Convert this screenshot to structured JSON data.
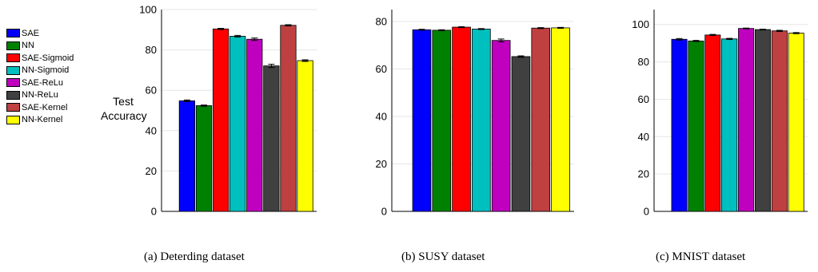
{
  "figure": {
    "ylabel": "Test Accuracy",
    "legend": [
      {
        "name": "SAE",
        "color": "#0000ff"
      },
      {
        "name": "NN",
        "color": "#008000"
      },
      {
        "name": "SAE-Sigmoid",
        "color": "#ff0000"
      },
      {
        "name": "NN-Sigmoid",
        "color": "#00bfbf"
      },
      {
        "name": "SAE-ReLu",
        "color": "#bf00bf"
      },
      {
        "name": "NN-ReLu",
        "color": "#404040"
      },
      {
        "name": "SAE-Kernel",
        "color": "#bf4040"
      },
      {
        "name": "NN-Kernel",
        "color": "#ffff00"
      }
    ]
  },
  "chart_data": [
    {
      "type": "bar",
      "caption": "(a) Deterding dataset",
      "categories": [
        "SAE",
        "NN",
        "SAE-Sigmoid",
        "NN-Sigmoid",
        "SAE-ReLu",
        "NN-ReLu",
        "SAE-Kernel",
        "NN-Kernel"
      ],
      "values": [
        54.8,
        52.4,
        90.4,
        86.8,
        85.3,
        72.1,
        92.2,
        74.7
      ],
      "errors": [
        0.4,
        0.3,
        0.3,
        0.4,
        0.6,
        0.8,
        0.3,
        0.4
      ],
      "ylim": [
        0,
        100
      ],
      "yticks": [
        0,
        20,
        40,
        60,
        80,
        100
      ],
      "grid": true
    },
    {
      "type": "bar",
      "caption": "(b) SUSY dataset",
      "categories": [
        "SAE",
        "NN",
        "SAE-Sigmoid",
        "NN-Sigmoid",
        "SAE-ReLu",
        "NN-ReLu",
        "SAE-Kernel",
        "NN-Kernel"
      ],
      "values": [
        76.5,
        76.3,
        77.6,
        76.8,
        72.0,
        65.2,
        77.2,
        77.3
      ],
      "errors": [
        0.2,
        0.2,
        0.2,
        0.2,
        0.6,
        0.3,
        0.2,
        0.2
      ],
      "ylim": [
        0,
        85
      ],
      "yticks": [
        0,
        20,
        40,
        60,
        80
      ],
      "grid": true
    },
    {
      "type": "bar",
      "caption": "(c) MNIST dataset",
      "categories": [
        "SAE",
        "NN",
        "SAE-Sigmoid",
        "NN-Sigmoid",
        "SAE-ReLu",
        "NN-ReLu",
        "SAE-Kernel",
        "NN-Kernel"
      ],
      "values": [
        92.1,
        91.2,
        94.4,
        92.3,
        97.9,
        97.3,
        96.6,
        95.4
      ],
      "errors": [
        0.4,
        0.3,
        0.3,
        0.3,
        0.2,
        0.2,
        0.3,
        0.3
      ],
      "ylim": [
        0,
        108
      ],
      "yticks": [
        0,
        20,
        40,
        60,
        80,
        100
      ],
      "grid": true
    }
  ]
}
